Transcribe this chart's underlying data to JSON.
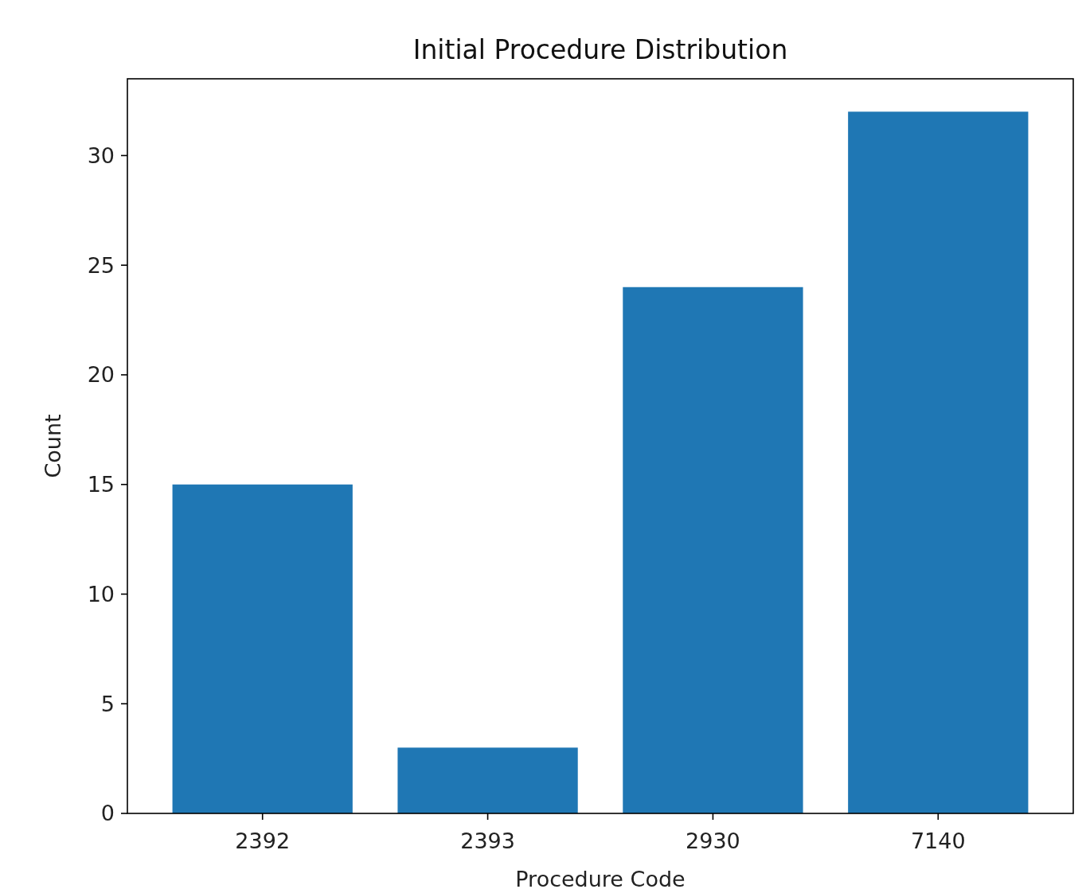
{
  "chart_data": {
    "type": "bar",
    "title": "Initial Procedure Distribution",
    "xlabel": "Procedure Code",
    "ylabel": "Count",
    "categories": [
      "2392",
      "2393",
      "2930",
      "7140"
    ],
    "values": [
      15,
      3,
      24,
      32
    ],
    "color": "#1f77b4",
    "ylim": [
      0,
      33.5
    ],
    "yticks": [
      0,
      5,
      10,
      15,
      20,
      25,
      30
    ],
    "grid": false
  }
}
